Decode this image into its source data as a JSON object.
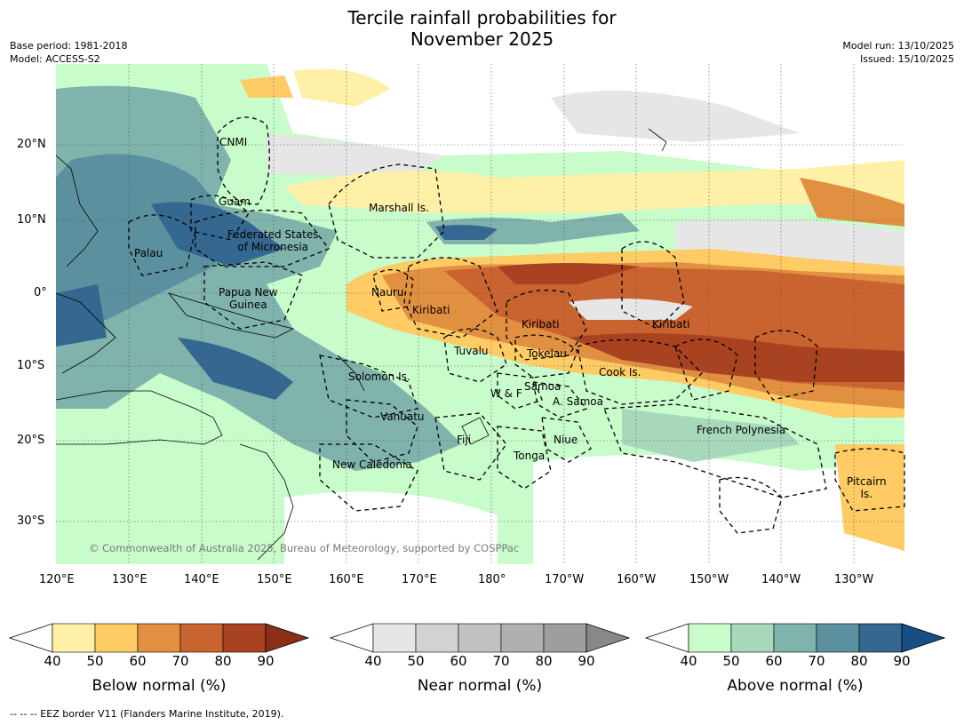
{
  "title_line1": "Tercile rainfall probabilities for",
  "title_line2": "November 2025",
  "meta_left": [
    "Base period: 1981-2018",
    "Model: ACCESS-S2"
  ],
  "meta_right": [
    "Model run: 13/10/2025",
    "Issued: 15/10/2025"
  ],
  "lat_labels": [
    "20°N",
    "10°N",
    "0°",
    "10°S",
    "20°S",
    "30°S"
  ],
  "lon_labels": [
    "120°E",
    "130°E",
    "140°E",
    "150°E",
    "160°E",
    "170°E",
    "180°",
    "170°W",
    "160°W",
    "150°W",
    "140°W",
    "130°W"
  ],
  "places": [
    {
      "name": "CNMI"
    },
    {
      "name": "Guam"
    },
    {
      "name": "Marshall Is."
    },
    {
      "name": "Federated States\nof Micronesia"
    },
    {
      "name": "Palau"
    },
    {
      "name": "Papua New\nGuinea"
    },
    {
      "name": "Nauru"
    },
    {
      "name": "Kiribati"
    },
    {
      "name": "Kiribati"
    },
    {
      "name": "Kiribati"
    },
    {
      "name": "Tuvalu"
    },
    {
      "name": "Tokelau"
    },
    {
      "name": "Cook Is."
    },
    {
      "name": "Solomon Is."
    },
    {
      "name": "Samoa"
    },
    {
      "name": "W & F"
    },
    {
      "name": "A. Samoa"
    },
    {
      "name": "Vanuatu"
    },
    {
      "name": "Fiji"
    },
    {
      "name": "Niue"
    },
    {
      "name": "French Polynesia"
    },
    {
      "name": "Tonga"
    },
    {
      "name": "New Caledonia"
    },
    {
      "name": "Pitcairn\nIs."
    }
  ],
  "copyright": "© Commonwealth of Australia 2025, Bureau of Meteorology, supported by COSPPac",
  "colorbars": [
    {
      "label": "Below normal (%)",
      "colors": [
        "#ffffff",
        "#fff0a8",
        "#fecb65",
        "#e09040",
        "#c96330",
        "#a94220",
        "#8a3018"
      ]
    },
    {
      "label": "Near normal (%)",
      "colors": [
        "#ffffff",
        "#e6e6e6",
        "#d2d2d2",
        "#c2c2c2",
        "#b0b0b0",
        "#9e9e9e",
        "#888888"
      ]
    },
    {
      "label": "Above normal (%)",
      "colors": [
        "#ffffff",
        "#c8fccb",
        "#a7d8bc",
        "#7fb3ab",
        "#5b919e",
        "#356891",
        "#174e84"
      ]
    }
  ],
  "ticks": [
    "40",
    "50",
    "60",
    "70",
    "80",
    "90"
  ],
  "footnote": "-- -- -- EEZ border V11 (Flanders Marine Institute, 2019)."
}
